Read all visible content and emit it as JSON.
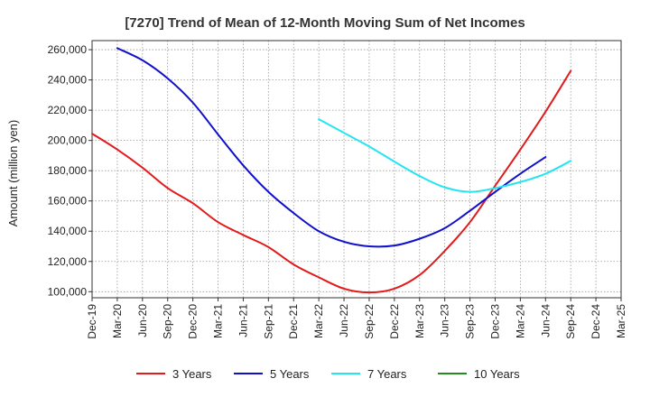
{
  "chart_data": {
    "type": "line",
    "title": "[7270]  Trend of Mean of 12-Month Moving Sum of Net Incomes",
    "ylabel": "Amount (million yen)",
    "xlabel": "",
    "ylim": [
      96000,
      266000
    ],
    "yticks": [
      100000,
      120000,
      140000,
      160000,
      180000,
      200000,
      220000,
      240000,
      260000
    ],
    "ytick_labels": [
      "100,000",
      "120,000",
      "140,000",
      "160,000",
      "180,000",
      "200,000",
      "220,000",
      "240,000",
      "260,000"
    ],
    "x_categories": [
      "Dec-19",
      "Mar-20",
      "Jun-20",
      "Sep-20",
      "Dec-20",
      "Mar-21",
      "Jun-21",
      "Sep-21",
      "Dec-21",
      "Mar-22",
      "Jun-22",
      "Sep-22",
      "Dec-22",
      "Mar-23",
      "Jun-23",
      "Sep-23",
      "Dec-23",
      "Mar-24",
      "Jun-24",
      "Sep-24",
      "Dec-24",
      "Mar-25"
    ],
    "grid": true,
    "legend_position": "bottom",
    "series": [
      {
        "name": "3 Years",
        "color": "#e31a1c",
        "start_index": 0,
        "values": [
          204500,
          194000,
          182000,
          168500,
          158500,
          146000,
          137500,
          129500,
          118000,
          109500,
          102000,
          99500,
          102000,
          111000,
          127000,
          146000,
          170000,
          194000,
          219000,
          246000
        ]
      },
      {
        "name": "5 Years",
        "color": "#1010cc",
        "start_index": 1,
        "values": [
          261000,
          253000,
          241000,
          225000,
          204000,
          183500,
          166000,
          152000,
          140000,
          133000,
          130000,
          130500,
          135000,
          142000,
          153500,
          166000,
          178000,
          189000
        ]
      },
      {
        "name": "7 Years",
        "color": "#22e5f0",
        "start_index": 9,
        "values": [
          214000,
          205000,
          196000,
          186000,
          176500,
          169000,
          166000,
          168500,
          172500,
          178000,
          186500
        ]
      },
      {
        "name": "10 Years",
        "color": "#228b22",
        "start_index": 0,
        "values": []
      }
    ]
  }
}
